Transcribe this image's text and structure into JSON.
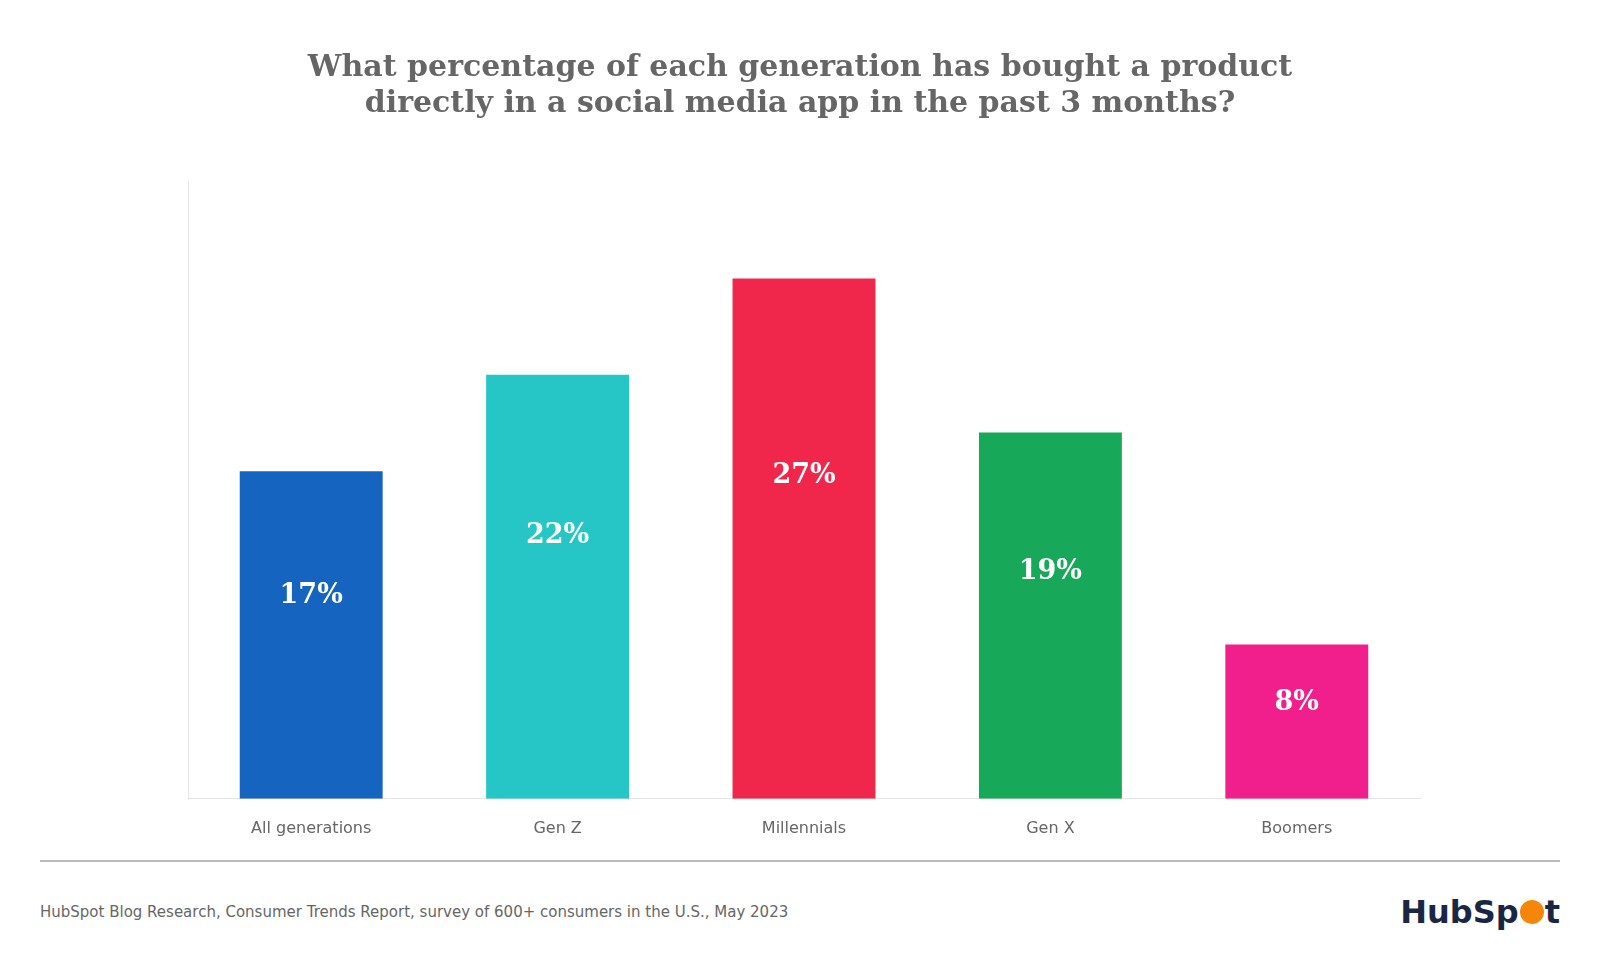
{
  "chart_data": {
    "type": "bar",
    "title": [
      "What percentage of each generation has bought a product",
      "directly in a social media app in the past 3 months?"
    ],
    "categories": [
      "All generations",
      "Gen Z",
      "Millennials",
      "Gen X",
      "Boomers"
    ],
    "values": [
      17,
      22,
      27,
      19,
      8
    ],
    "value_labels": [
      "17%",
      "22%",
      "27%",
      "19%",
      "8%"
    ],
    "colors": [
      "#1565C0",
      "#26C6C6",
      "#F0274B",
      "#18A85A",
      "#F01F8C"
    ],
    "ylim": [
      0,
      32
    ],
    "grid": false,
    "data_labels": true,
    "tick_labels": "x",
    "annotations": [
      "HubSpot Blog Research, Consumer Trends Report, survey of 600+ consumers in the U.S., May 2023",
      "Hub",
      "Sp",
      "t"
    ]
  }
}
